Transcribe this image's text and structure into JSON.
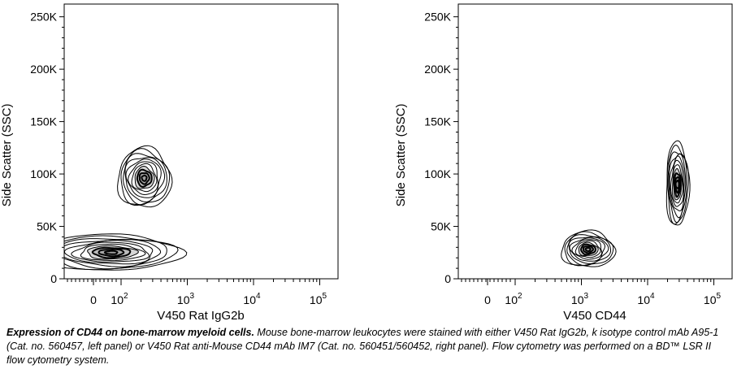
{
  "chart_data": [
    {
      "type": "contour",
      "xlabel": "V450 Rat IgG2b",
      "ylabel": "Side Scatter (SSC)",
      "y_ticks": [
        "0",
        "50K",
        "100K",
        "150K",
        "200K",
        "250K"
      ],
      "y_tick_values": [
        0,
        50000,
        100000,
        150000,
        200000,
        250000
      ],
      "ylim": [
        0,
        262144
      ],
      "x_ticks": [
        {
          "base": "0",
          "exp": ""
        },
        {
          "base": "10",
          "exp": "2"
        },
        {
          "base": "10",
          "exp": "3"
        },
        {
          "base": "10",
          "exp": "4"
        },
        {
          "base": "10",
          "exp": "5"
        }
      ],
      "x_scale": "biexponential",
      "populations": [
        {
          "x_log": 2.35,
          "y": 96000,
          "spread_x": 0.35,
          "spread_y": 25000
        },
        {
          "x_log": 1.3,
          "y": 25000,
          "spread_x": 0.9,
          "spread_y": 15000
        }
      ]
    },
    {
      "type": "contour",
      "xlabel": "V450 CD44",
      "ylabel": "Side Scatter (SSC)",
      "y_ticks": [
        "0",
        "50K",
        "100K",
        "150K",
        "200K",
        "250K"
      ],
      "y_tick_values": [
        0,
        50000,
        100000,
        150000,
        200000,
        250000
      ],
      "ylim": [
        0,
        262144
      ],
      "x_ticks": [
        {
          "base": "0",
          "exp": ""
        },
        {
          "base": "10",
          "exp": "2"
        },
        {
          "base": "10",
          "exp": "3"
        },
        {
          "base": "10",
          "exp": "4"
        },
        {
          "base": "10",
          "exp": "5"
        }
      ],
      "x_scale": "biexponential",
      "populations": [
        {
          "x_log": 3.1,
          "y": 28000,
          "spread_x": 0.35,
          "spread_y": 15000
        },
        {
          "x_log": 4.45,
          "y": 90000,
          "spread_x": 0.15,
          "spread_y": 35000
        }
      ]
    }
  ],
  "caption": {
    "title": "Expression of CD44 on bone-marrow myeloid cells.",
    "text": " Mouse bone-marrow leukocytes were stained with either V450 Rat IgG2b, k isotype control mAb A95-1 (Cat. no. 560457, left panel) or V450 Rat anti-Mouse CD44 mAb IM7 (Cat. no. 560451/560452, right panel). Flow cytometry was performed on a BD™ LSR II flow cytometry system."
  },
  "colors": {
    "contour": "#000000",
    "fill": "#8a8a8a",
    "background": "#ffffff"
  }
}
